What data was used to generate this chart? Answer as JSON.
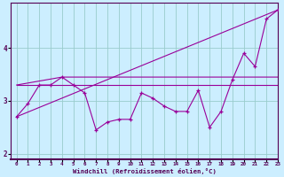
{
  "xlabel": "Windchill (Refroidissement éolien,°C)",
  "bg_color": "#cceeff",
  "line_color": "#990099",
  "grid_color": "#99cccc",
  "x_hours": [
    0,
    1,
    2,
    3,
    4,
    5,
    6,
    7,
    8,
    9,
    10,
    11,
    12,
    13,
    14,
    15,
    16,
    17,
    18,
    19,
    20,
    21,
    22,
    23
  ],
  "series1": [
    2.7,
    2.95,
    3.3,
    3.3,
    3.45,
    3.3,
    3.15,
    2.45,
    2.6,
    2.65,
    2.65,
    3.15,
    3.05,
    2.9,
    2.8,
    2.8,
    3.2,
    2.5,
    2.8,
    3.4,
    3.9,
    3.65,
    4.55,
    4.72
  ],
  "line2_x": [
    0,
    23
  ],
  "line2_y": [
    2.7,
    4.72
  ],
  "line3_x": [
    0,
    4,
    23
  ],
  "line3_y": [
    3.3,
    3.45,
    3.45
  ],
  "line4_x": [
    0,
    23
  ],
  "line4_y": [
    3.3,
    3.3
  ],
  "ylim": [
    1.9,
    4.85
  ],
  "xlim": [
    -0.5,
    23
  ],
  "yticks": [
    2,
    3,
    4
  ],
  "xticks": [
    0,
    1,
    2,
    3,
    4,
    5,
    6,
    7,
    8,
    9,
    10,
    11,
    12,
    13,
    14,
    15,
    16,
    17,
    18,
    19,
    20,
    21,
    22,
    23
  ]
}
